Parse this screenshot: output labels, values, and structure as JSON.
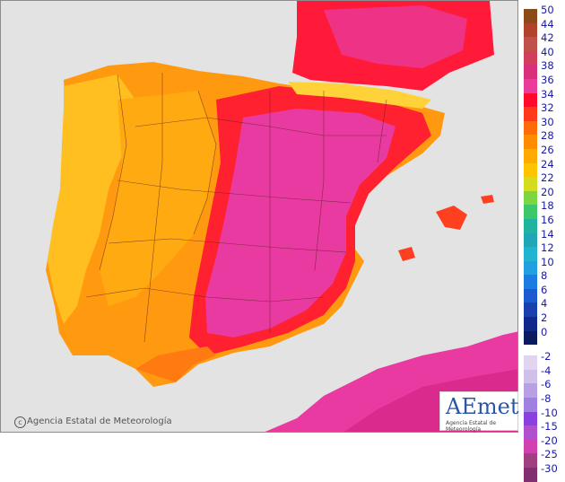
{
  "map": {
    "title": "",
    "copyright": "Agencia Estatal de Meteorología",
    "logo_text": "AEmet",
    "logo_subtitle": "Agencia Estatal de Meteorología"
  },
  "legend": {
    "positive": [
      {
        "label": "50",
        "color": "#8a4a1a"
      },
      {
        "label": "44",
        "color": "#b0442a"
      },
      {
        "label": "42",
        "color": "#c0504a"
      },
      {
        "label": "40",
        "color": "#d0405a"
      },
      {
        "label": "38",
        "color": "#d8307a"
      },
      {
        "label": "36",
        "color": "#ea3a9a"
      },
      {
        "label": "34",
        "color": "#ff0a2a"
      },
      {
        "label": "32",
        "color": "#ff3a1a"
      },
      {
        "label": "30",
        "color": "#ff6a0a"
      },
      {
        "label": "28",
        "color": "#ff8c00"
      },
      {
        "label": "26",
        "color": "#ffaa00"
      },
      {
        "label": "24",
        "color": "#ffc400"
      },
      {
        "label": "22",
        "color": "#d4dc20"
      },
      {
        "label": "20",
        "color": "#7cd640"
      },
      {
        "label": "18",
        "color": "#3cc86a"
      },
      {
        "label": "16",
        "color": "#20b4a0"
      },
      {
        "label": "14",
        "color": "#20a6b6"
      },
      {
        "label": "12",
        "color": "#20b4d0"
      },
      {
        "label": "10",
        "color": "#20a0e0"
      },
      {
        "label": "8",
        "color": "#1a7ce0"
      },
      {
        "label": "6",
        "color": "#1a5cd0"
      },
      {
        "label": "4",
        "color": "#1a40b0"
      },
      {
        "label": "2",
        "color": "#10288a"
      },
      {
        "label": "0",
        "color": "#0a1a60"
      }
    ],
    "negative": [
      {
        "label": "-2",
        "color": "#e0d4f0"
      },
      {
        "label": "-4",
        "color": "#cfc0ea"
      },
      {
        "label": "-6",
        "color": "#b8a0e4"
      },
      {
        "label": "-8",
        "color": "#a080e0"
      },
      {
        "label": "-10",
        "color": "#8a40e0"
      },
      {
        "label": "-15",
        "color": "#b050d0"
      },
      {
        "label": "-20",
        "color": "#d040b0"
      },
      {
        "label": "-25",
        "color": "#a04080"
      },
      {
        "label": "-30",
        "color": "#803070"
      }
    ]
  }
}
